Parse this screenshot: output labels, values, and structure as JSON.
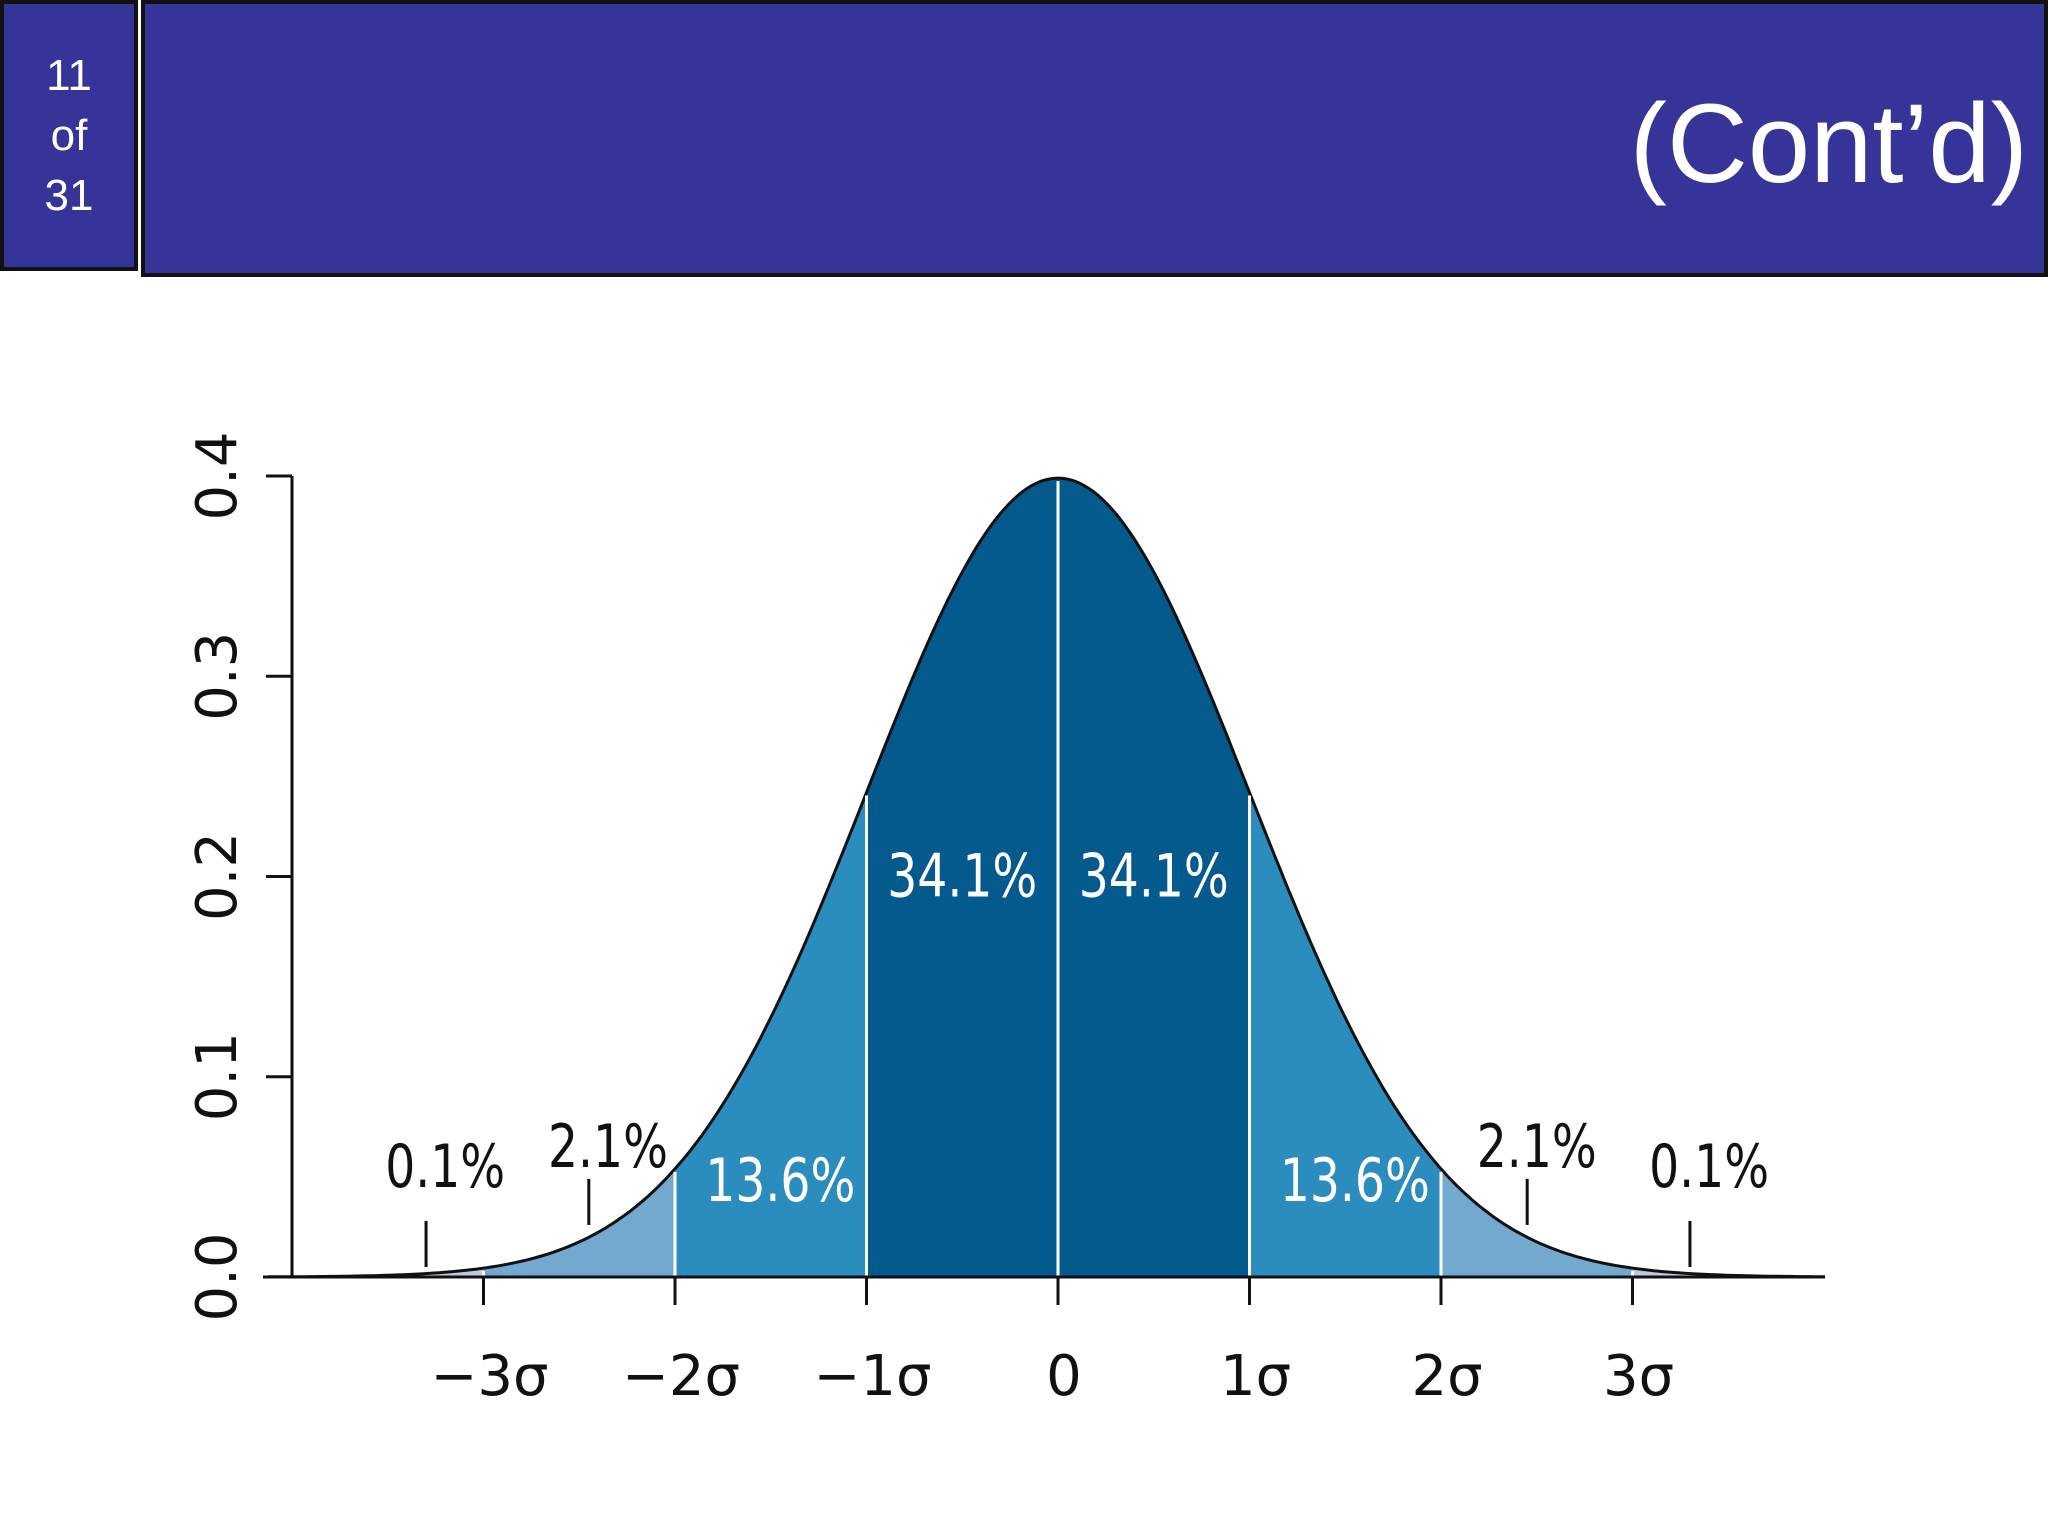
{
  "slide": {
    "number": "11",
    "of": "of",
    "total": "31",
    "title": "(Cont’d)"
  },
  "colors": {
    "header_bg": "#363499",
    "dark_band": "#045a8d",
    "mid_band": "#2b8cbe",
    "light_band": "#74a9cf",
    "tail_band": "#bdc9e1"
  },
  "chart_data": {
    "type": "area",
    "title": "",
    "xlabel": "",
    "ylabel": "",
    "xlim": [
      -4,
      4
    ],
    "ylim": [
      0,
      0.4
    ],
    "grid": false,
    "y_ticks": [
      "0.0",
      "0.1",
      "0.2",
      "0.3",
      "0.4"
    ],
    "x_ticks": [
      {
        "value": -3,
        "label": "−3σ"
      },
      {
        "value": -2,
        "label": "−2σ"
      },
      {
        "value": -1,
        "label": "−1σ"
      },
      {
        "value": 0,
        "label": "0"
      },
      {
        "value": 1,
        "label": "1σ"
      },
      {
        "value": 2,
        "label": "2σ"
      },
      {
        "value": 3,
        "label": "3σ"
      }
    ],
    "curve": "standard normal density",
    "bands": [
      {
        "from": -1,
        "to": 0,
        "percent": "34.1%",
        "label_x": -0.5,
        "label_y": 0.19
      },
      {
        "from": 0,
        "to": 1,
        "percent": "34.1%",
        "label_x": 0.5,
        "label_y": 0.19
      },
      {
        "from": -2,
        "to": -1,
        "percent": "13.6%",
        "label_x": -1.45,
        "label_y": 0.038
      },
      {
        "from": 1,
        "to": 2,
        "percent": "13.6%",
        "label_x": 1.55,
        "label_y": 0.038
      },
      {
        "from": -3,
        "to": -2,
        "percent": "2.1%",
        "label_x": -2.35,
        "label_y": 0.055
      },
      {
        "from": 2,
        "to": 3,
        "percent": "2.1%",
        "label_x": 2.5,
        "label_y": 0.055
      },
      {
        "from": -4,
        "to": -3,
        "percent": "0.1%",
        "label_x": -3.2,
        "label_y": 0.045
      },
      {
        "from": 3,
        "to": 4,
        "percent": "0.1%",
        "label_x": 3.4,
        "label_y": 0.045
      }
    ],
    "pointers": [
      {
        "x": -3.3,
        "y_from": 0.005,
        "y_to": 0.028
      },
      {
        "x": -2.45,
        "y_from": 0.026,
        "y_to": 0.049
      },
      {
        "x": 2.45,
        "y_from": 0.026,
        "y_to": 0.049
      },
      {
        "x": 3.3,
        "y_from": 0.005,
        "y_to": 0.028
      }
    ]
  }
}
